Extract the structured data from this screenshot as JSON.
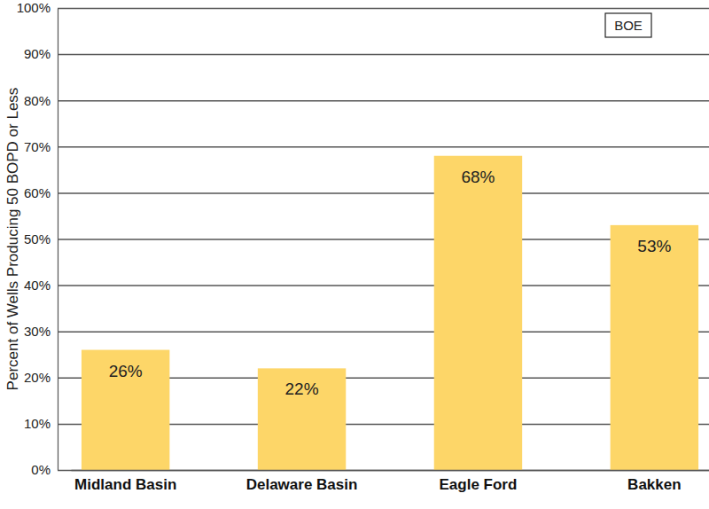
{
  "chart_data": {
    "type": "bar",
    "y_label": "Percent of Wells Producing 50 BOPD or Less",
    "annotation": "BOE",
    "categories": [
      "Midland Basin",
      "Delaware Basin",
      "Eagle Ford",
      "Bakken"
    ],
    "values": [
      26,
      22,
      68,
      53
    ],
    "value_labels": [
      "26%",
      "22%",
      "68%",
      "53%"
    ],
    "data_labels": true,
    "color": "#fdd668",
    "ylim": [
      0,
      100
    ],
    "yticks": [
      {
        "value": 0,
        "label": "0%"
      },
      {
        "value": 10,
        "label": "10%"
      },
      {
        "value": 20,
        "label": "20%"
      },
      {
        "value": 30,
        "label": "30%"
      },
      {
        "value": 40,
        "label": "40%"
      },
      {
        "value": 50,
        "label": "50%"
      },
      {
        "value": 60,
        "label": "60%"
      },
      {
        "value": 70,
        "label": "70%"
      },
      {
        "value": 80,
        "label": "80%"
      },
      {
        "value": 90,
        "label": "90%"
      },
      {
        "value": 100,
        "label": "100%"
      }
    ],
    "grid": true
  }
}
